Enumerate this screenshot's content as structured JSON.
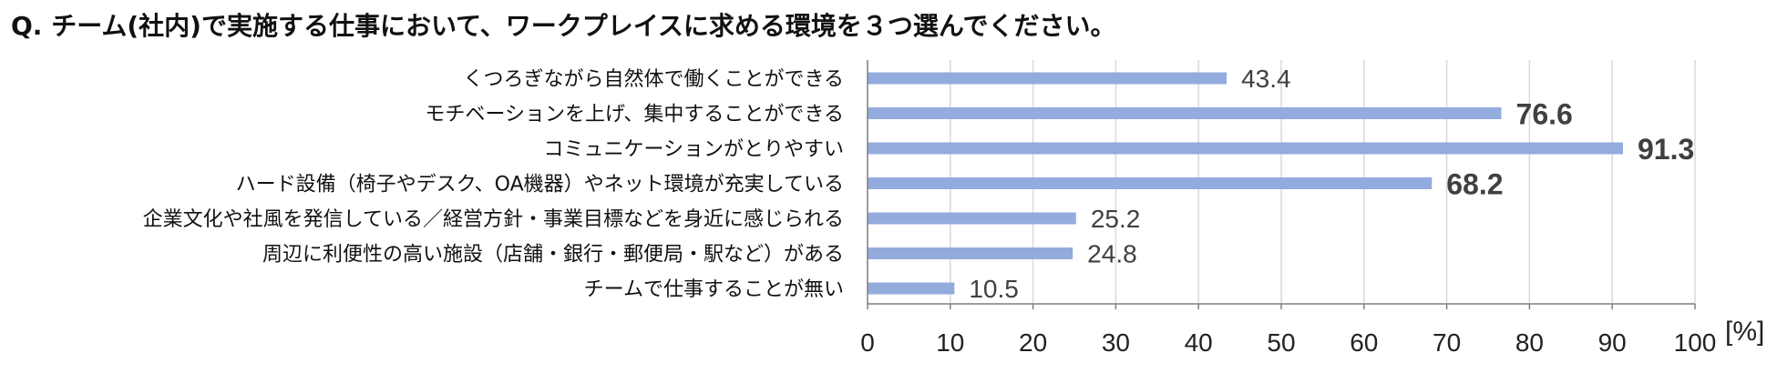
{
  "chart_data": {
    "type": "bar",
    "orientation": "horizontal",
    "title": "Q. チーム(社内)で実施する仕事において、ワークプレイスに求める環境を３つ選んでください。",
    "categories": [
      "くつろぎながら自然体で働くことができる",
      "モチベーションを上げ、集中することができる",
      "コミュニケーションがとりやすい",
      "ハード設備（椅子やデスク、OA機器）やネット環境が充実している",
      "企業文化や社風を発信している／経営方針・事業目標などを身近に感じられる",
      "周辺に利便性の高い施設（店舗・銀行・郵便局・駅など）がある",
      "チームで仕事することが無い"
    ],
    "values": [
      43.4,
      76.6,
      91.3,
      68.2,
      25.2,
      24.8,
      10.5
    ],
    "value_labels": [
      "43.4",
      "76.6",
      "91.3",
      "68.2",
      "25.2",
      "24.8",
      "10.5"
    ],
    "highlighted": [
      false,
      true,
      true,
      true,
      false,
      false,
      false
    ],
    "xlim": [
      0,
      100
    ],
    "xticks": [
      0,
      10,
      20,
      30,
      40,
      50,
      60,
      70,
      80,
      90,
      100
    ],
    "xtick_labels": [
      "0",
      "10",
      "20",
      "30",
      "40",
      "50",
      "60",
      "70",
      "80",
      "90",
      "100"
    ],
    "unit": "[%]",
    "grid": true,
    "colors": {
      "bar": "#94abde",
      "label_normal": "#404040",
      "label_highlight": "#c00000",
      "grid": "#d9d9d9",
      "axis": "#7f7f7f"
    }
  }
}
